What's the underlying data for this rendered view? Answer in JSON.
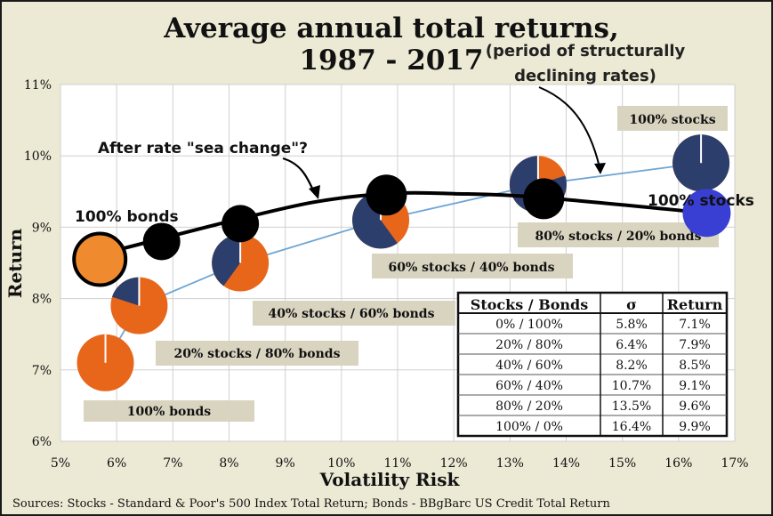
{
  "chart_data": {
    "type": "scatter",
    "title_line1": "Average annual total returns,",
    "title_line2": "1987 - 2017",
    "subtitle_line1": "(period of structurally",
    "subtitle_line2": "declining rates)",
    "xlabel": "Volatility Risk",
    "ylabel": "Return",
    "xlim": [
      5,
      17
    ],
    "ylim": [
      6,
      11
    ],
    "x_ticks": [
      5,
      6,
      7,
      8,
      9,
      10,
      11,
      12,
      13,
      14,
      15,
      16,
      17
    ],
    "y_ticks": [
      6,
      7,
      8,
      9,
      10,
      11
    ],
    "x_tick_labels": [
      "5%",
      "6%",
      "7%",
      "8%",
      "9%",
      "10%",
      "11%",
      "12%",
      "13%",
      "14%",
      "15%",
      "16%",
      "17%"
    ],
    "y_tick_labels": [
      "6%",
      "7%",
      "8%",
      "9%",
      "10%",
      "11%"
    ],
    "grid": true,
    "colors": {
      "stocks": "#2c3e6b",
      "bonds": "#e8661a",
      "curve": "#6ea6d4",
      "after_curve": "#000000",
      "after_stocks_point": "#3a3fd4",
      "after_bonds_point": "#f08a2e",
      "label_box": "#d9d4c0",
      "frame": "#ece9d4"
    },
    "historical_portfolios": [
      {
        "label": "100% bonds",
        "stock_share": 0.0,
        "x": 5.8,
        "y": 7.1
      },
      {
        "label": "20% stocks / 80% bonds",
        "stock_share": 0.2,
        "x": 6.4,
        "y": 7.9
      },
      {
        "label": "40% stocks / 60% bonds",
        "stock_share": 0.4,
        "x": 8.2,
        "y": 8.5
      },
      {
        "label": "60% stocks / 40% bonds",
        "stock_share": 0.6,
        "x": 10.7,
        "y": 9.1
      },
      {
        "label": "80% stocks / 20% bonds",
        "stock_share": 0.8,
        "x": 13.5,
        "y": 9.6
      },
      {
        "label": "100% stocks",
        "stock_share": 1.0,
        "x": 16.4,
        "y": 9.9
      }
    ],
    "after_annotation": "After rate \"sea change\"?",
    "after_points": [
      {
        "x": 5.7,
        "y": 8.55,
        "label": "100% bonds",
        "kind": "bonds"
      },
      {
        "x": 6.8,
        "y": 8.8,
        "kind": "mix"
      },
      {
        "x": 8.2,
        "y": 9.05,
        "kind": "mix"
      },
      {
        "x": 10.8,
        "y": 9.45,
        "kind": "mix"
      },
      {
        "x": 13.6,
        "y": 9.4,
        "kind": "mix"
      },
      {
        "x": 16.5,
        "y": 9.2,
        "label": "100% stocks",
        "kind": "stocks"
      }
    ],
    "after_curve_points": [
      [
        5.7,
        8.62
      ],
      [
        6.5,
        8.78
      ],
      [
        8.0,
        9.08
      ],
      [
        9.5,
        9.35
      ],
      [
        10.8,
        9.47
      ],
      [
        12.0,
        9.47
      ],
      [
        13.5,
        9.42
      ],
      [
        16.5,
        9.2
      ]
    ],
    "table": {
      "headers": [
        "Stocks / Bonds",
        "σ",
        "Return"
      ],
      "rows": [
        [
          "0% / 100%",
          "5.8%",
          "7.1%"
        ],
        [
          "20% / 80%",
          "6.4%",
          "7.9%"
        ],
        [
          "40% / 60%",
          "8.2%",
          "8.5%"
        ],
        [
          "60% / 40%",
          "10.7%",
          "9.1%"
        ],
        [
          "80% / 20%",
          "13.5%",
          "9.6%"
        ],
        [
          "100% / 0%",
          "16.4%",
          "9.9%"
        ]
      ]
    }
  },
  "source_note": "Sources: Stocks - Standard & Poor's 500 Index Total Return; Bonds - BBgBarc US Credit Total Return"
}
